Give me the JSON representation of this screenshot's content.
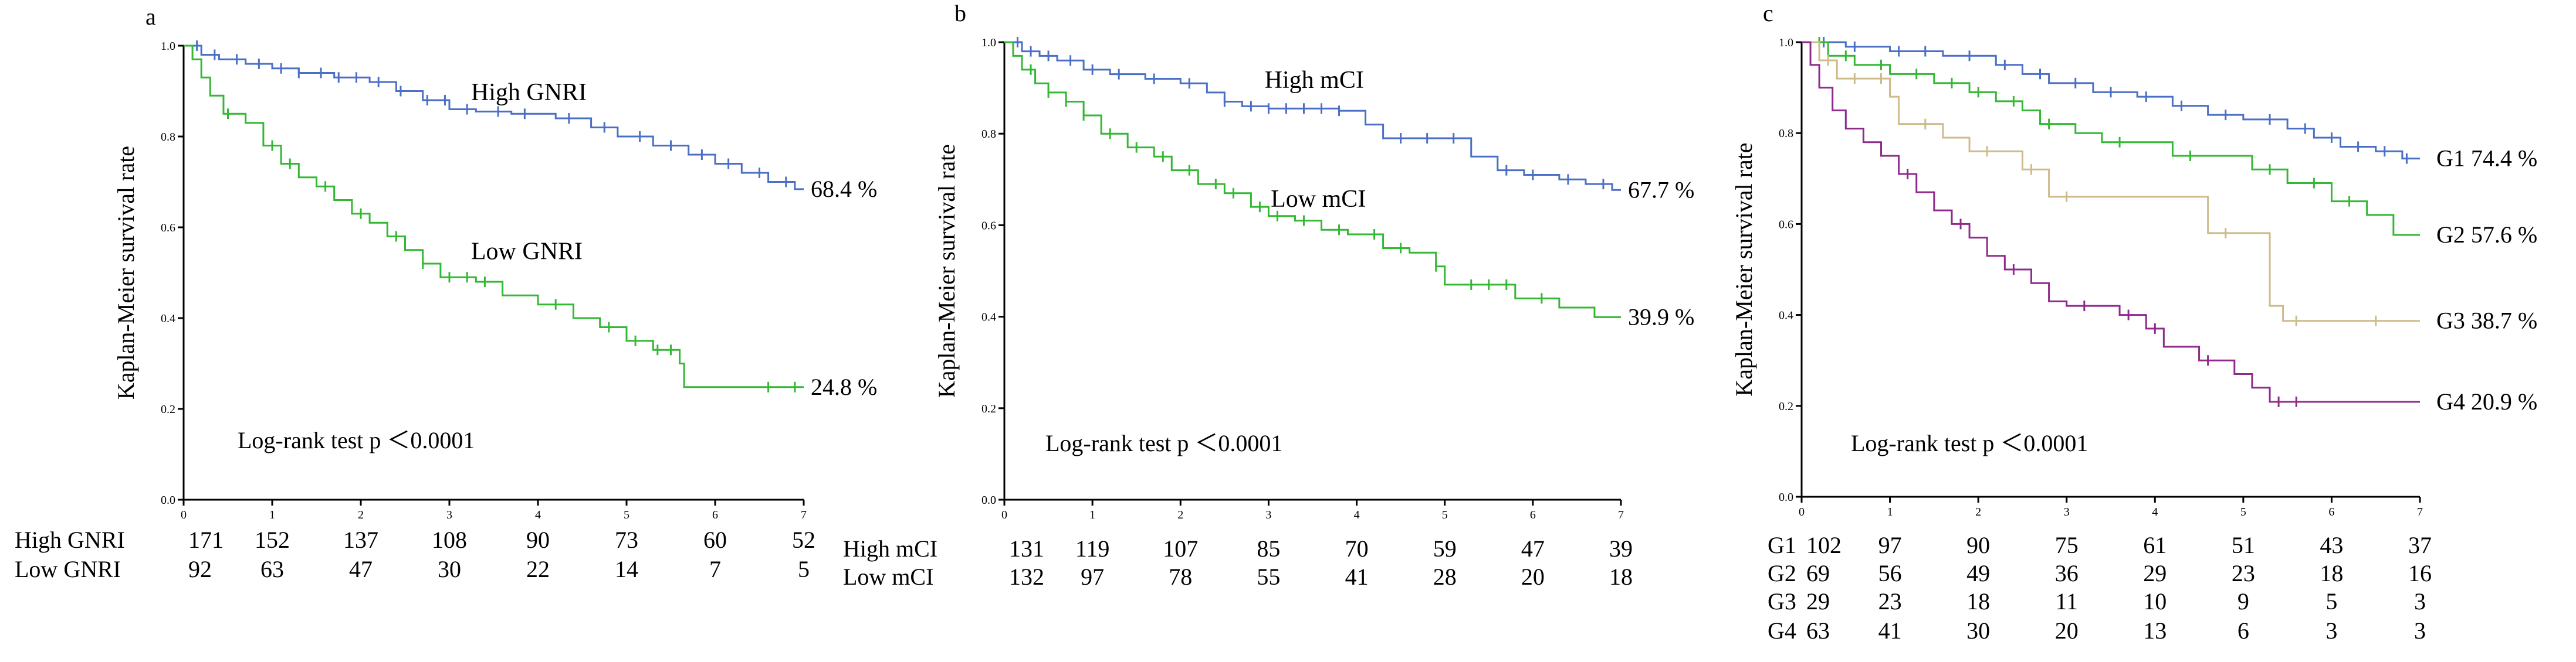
{
  "figure": {
    "x_ticks": [
      "0",
      "1",
      "2",
      "3",
      "4",
      "5",
      "6",
      "7"
    ],
    "y_ticks": [
      "0.0",
      "0.2",
      "0.4",
      "0.6",
      "0.8",
      "1.0"
    ]
  },
  "colors": {
    "blue": "#4A6FC6",
    "green": "#33B833",
    "tan": "#CDBB8A",
    "purple": "#8E2A8C",
    "axis": "#000000"
  },
  "chart_data": [
    {
      "panel": "a",
      "type": "line",
      "step": true,
      "ylabel": "Kaplan-Meier survival rate",
      "xlim": [
        0,
        7
      ],
      "ylim": [
        0,
        1
      ],
      "annotation": "Log-rank test  p ＜0.0001",
      "series": [
        {
          "name": "High GNRI",
          "color_key": "blue",
          "label": "High GNRI",
          "end_label": "68.4 %",
          "points": [
            [
              0,
              1.0
            ],
            [
              0.2,
              0.98
            ],
            [
              0.4,
              0.97
            ],
            [
              0.7,
              0.96
            ],
            [
              1.0,
              0.95
            ],
            [
              1.3,
              0.94
            ],
            [
              1.7,
              0.93
            ],
            [
              2.1,
              0.92
            ],
            [
              2.4,
              0.9
            ],
            [
              2.7,
              0.88
            ],
            [
              3.0,
              0.86
            ],
            [
              3.3,
              0.855
            ],
            [
              3.7,
              0.85
            ],
            [
              4.2,
              0.84
            ],
            [
              4.6,
              0.82
            ],
            [
              4.9,
              0.8
            ],
            [
              5.3,
              0.78
            ],
            [
              5.7,
              0.76
            ],
            [
              6.0,
              0.74
            ],
            [
              6.3,
              0.72
            ],
            [
              6.6,
              0.7
            ],
            [
              6.9,
              0.684
            ],
            [
              7.0,
              0.684
            ]
          ],
          "censors": [
            0.15,
            0.35,
            0.6,
            0.85,
            1.1,
            1.3,
            1.55,
            1.75,
            1.95,
            2.2,
            2.45,
            2.75,
            2.95,
            3.2,
            3.55,
            3.85,
            4.35,
            4.75,
            5.15,
            5.5,
            5.85,
            6.15,
            6.5,
            6.8
          ]
        },
        {
          "name": "Low GNRI",
          "color_key": "green",
          "label": "Low GNRI",
          "end_label": "24.8 %",
          "points": [
            [
              0,
              1.0
            ],
            [
              0.1,
              0.97
            ],
            [
              0.2,
              0.93
            ],
            [
              0.3,
              0.89
            ],
            [
              0.45,
              0.85
            ],
            [
              0.7,
              0.83
            ],
            [
              0.9,
              0.78
            ],
            [
              1.1,
              0.74
            ],
            [
              1.3,
              0.71
            ],
            [
              1.5,
              0.69
            ],
            [
              1.7,
              0.66
            ],
            [
              1.9,
              0.63
            ],
            [
              2.1,
              0.61
            ],
            [
              2.3,
              0.58
            ],
            [
              2.5,
              0.55
            ],
            [
              2.7,
              0.52
            ],
            [
              2.9,
              0.49
            ],
            [
              3.3,
              0.48
            ],
            [
              3.6,
              0.45
            ],
            [
              4.0,
              0.43
            ],
            [
              4.4,
              0.4
            ],
            [
              4.7,
              0.38
            ],
            [
              5.0,
              0.35
            ],
            [
              5.3,
              0.33
            ],
            [
              5.6,
              0.3
            ],
            [
              5.65,
              0.248
            ],
            [
              7.0,
              0.248
            ]
          ],
          "censors": [
            0.5,
            1.0,
            1.2,
            1.6,
            2.0,
            2.4,
            2.7,
            3.0,
            3.2,
            3.4,
            4.2,
            4.8,
            5.1,
            5.35,
            5.5,
            6.6,
            6.9
          ]
        }
      ],
      "risk_table": {
        "rows": [
          {
            "label": "High GNRI",
            "counts": [
              "171",
              "152",
              "137",
              "108",
              "90",
              "73",
              "60",
              "52"
            ]
          },
          {
            "label": "Low  GNRI",
            "counts": [
              "92",
              "63",
              "47",
              "30",
              "22",
              "14",
              "7",
              "5"
            ]
          }
        ]
      }
    },
    {
      "panel": "b",
      "type": "line",
      "step": true,
      "ylabel": "Kaplan-Meier survival rate",
      "xlim": [
        0,
        7
      ],
      "ylim": [
        0,
        1
      ],
      "annotation": "Log-rank test  p ＜0.0001",
      "series": [
        {
          "name": "High mCI",
          "color_key": "blue",
          "label": "High mCI",
          "end_label": "67.7 %",
          "points": [
            [
              0,
              1.0
            ],
            [
              0.2,
              0.98
            ],
            [
              0.4,
              0.97
            ],
            [
              0.6,
              0.96
            ],
            [
              0.9,
              0.94
            ],
            [
              1.2,
              0.93
            ],
            [
              1.6,
              0.92
            ],
            [
              2.0,
              0.91
            ],
            [
              2.3,
              0.89
            ],
            [
              2.5,
              0.87
            ],
            [
              2.7,
              0.86
            ],
            [
              3.0,
              0.855
            ],
            [
              3.4,
              0.855
            ],
            [
              3.8,
              0.85
            ],
            [
              4.1,
              0.82
            ],
            [
              4.3,
              0.79
            ],
            [
              4.6,
              0.79
            ],
            [
              5.0,
              0.79
            ],
            [
              5.3,
              0.75
            ],
            [
              5.6,
              0.72
            ],
            [
              5.9,
              0.71
            ],
            [
              6.3,
              0.7
            ],
            [
              6.6,
              0.69
            ],
            [
              6.9,
              0.677
            ],
            [
              7.0,
              0.677
            ]
          ],
          "censors": [
            0.15,
            0.3,
            0.5,
            0.75,
            1.0,
            1.3,
            1.7,
            2.1,
            2.5,
            2.8,
            3.0,
            3.2,
            3.4,
            3.6,
            3.8,
            4.5,
            4.8,
            5.1,
            5.7,
            6.0,
            6.4,
            6.8
          ]
        },
        {
          "name": "Low mCI",
          "color_key": "green",
          "label": "Low  mCI",
          "end_label": "39.9 %",
          "points": [
            [
              0,
              1.0
            ],
            [
              0.1,
              0.97
            ],
            [
              0.2,
              0.94
            ],
            [
              0.35,
              0.91
            ],
            [
              0.5,
              0.89
            ],
            [
              0.7,
              0.87
            ],
            [
              0.9,
              0.84
            ],
            [
              1.1,
              0.8
            ],
            [
              1.4,
              0.77
            ],
            [
              1.7,
              0.75
            ],
            [
              1.9,
              0.72
            ],
            [
              2.2,
              0.69
            ],
            [
              2.5,
              0.67
            ],
            [
              2.8,
              0.64
            ],
            [
              3.0,
              0.62
            ],
            [
              3.3,
              0.61
            ],
            [
              3.6,
              0.59
            ],
            [
              3.9,
              0.58
            ],
            [
              4.3,
              0.55
            ],
            [
              4.6,
              0.54
            ],
            [
              4.9,
              0.51
            ],
            [
              5.0,
              0.47
            ],
            [
              5.5,
              0.47
            ],
            [
              5.8,
              0.44
            ],
            [
              6.3,
              0.42
            ],
            [
              6.7,
              0.399
            ],
            [
              7.0,
              0.399
            ]
          ],
          "censors": [
            0.3,
            0.5,
            0.7,
            0.9,
            1.2,
            1.5,
            1.8,
            2.1,
            2.4,
            2.6,
            2.9,
            3.1,
            3.4,
            3.8,
            4.2,
            4.5,
            4.9,
            5.3,
            5.5,
            5.7,
            6.1
          ]
        }
      ],
      "risk_table": {
        "rows": [
          {
            "label": "High mCI",
            "counts": [
              "131",
              "119",
              "107",
              "85",
              "70",
              "59",
              "47",
              "39"
            ]
          },
          {
            "label": "Low  mCI",
            "counts": [
              "132",
              "97",
              "78",
              "55",
              "41",
              "28",
              "20",
              "18"
            ]
          }
        ]
      }
    },
    {
      "panel": "c",
      "type": "line",
      "step": true,
      "ylabel": "Kaplan-Meier survival rate",
      "xlim": [
        0,
        7
      ],
      "ylim": [
        0,
        1
      ],
      "annotation": "Log-rank test  p ＜0.0001",
      "series": [
        {
          "name": "G1",
          "color_key": "blue",
          "label": "G1",
          "end_label": "G1  74.4 %",
          "points": [
            [
              0,
              1.0
            ],
            [
              0.5,
              0.99
            ],
            [
              1.0,
              0.98
            ],
            [
              1.6,
              0.97
            ],
            [
              2.2,
              0.95
            ],
            [
              2.5,
              0.93
            ],
            [
              2.8,
              0.91
            ],
            [
              3.3,
              0.89
            ],
            [
              3.8,
              0.88
            ],
            [
              4.2,
              0.86
            ],
            [
              4.6,
              0.84
            ],
            [
              5.0,
              0.83
            ],
            [
              5.5,
              0.81
            ],
            [
              5.8,
              0.79
            ],
            [
              6.1,
              0.77
            ],
            [
              6.5,
              0.76
            ],
            [
              6.8,
              0.744
            ],
            [
              7.0,
              0.744
            ]
          ],
          "censors": [
            0.25,
            0.6,
            1.1,
            1.4,
            1.9,
            2.3,
            2.7,
            3.1,
            3.5,
            3.9,
            4.3,
            4.8,
            5.3,
            5.7,
            6.0,
            6.3,
            6.6,
            6.85
          ]
        },
        {
          "name": "G2",
          "color_key": "green",
          "label": "G2",
          "end_label": "G2  57.6 %",
          "points": [
            [
              0,
              1.0
            ],
            [
              0.3,
              0.97
            ],
            [
              0.6,
              0.95
            ],
            [
              1.0,
              0.93
            ],
            [
              1.5,
              0.91
            ],
            [
              1.9,
              0.89
            ],
            [
              2.2,
              0.87
            ],
            [
              2.5,
              0.85
            ],
            [
              2.7,
              0.82
            ],
            [
              3.1,
              0.8
            ],
            [
              3.4,
              0.78
            ],
            [
              3.8,
              0.78
            ],
            [
              4.2,
              0.75
            ],
            [
              4.8,
              0.75
            ],
            [
              5.1,
              0.72
            ],
            [
              5.5,
              0.69
            ],
            [
              5.9,
              0.69
            ],
            [
              6.0,
              0.65
            ],
            [
              6.4,
              0.62
            ],
            [
              6.7,
              0.576
            ],
            [
              7.0,
              0.576
            ]
          ],
          "censors": [
            0.2,
            0.5,
            0.9,
            1.3,
            1.7,
            2.0,
            2.4,
            2.8,
            3.6,
            4.4,
            5.3,
            5.8,
            6.2
          ]
        },
        {
          "name": "G3",
          "color_key": "tan",
          "label": "G3",
          "end_label": "G3  38.7 %",
          "points": [
            [
              0,
              1.0
            ],
            [
              0.2,
              0.96
            ],
            [
              0.4,
              0.92
            ],
            [
              1.0,
              0.88
            ],
            [
              1.1,
              0.82
            ],
            [
              1.6,
              0.79
            ],
            [
              1.9,
              0.76
            ],
            [
              2.5,
              0.72
            ],
            [
              2.8,
              0.66
            ],
            [
              4.6,
              0.58
            ],
            [
              5.1,
              0.58
            ],
            [
              5.3,
              0.42
            ],
            [
              5.45,
              0.387
            ],
            [
              7.0,
              0.387
            ]
          ],
          "censors": [
            0.3,
            0.6,
            0.9,
            1.4,
            2.1,
            2.6,
            3.0,
            4.8,
            5.6,
            6.5
          ]
        },
        {
          "name": "G4",
          "color_key": "purple",
          "label": "G4",
          "end_label": "G4  20.9 %",
          "points": [
            [
              0,
              1.0
            ],
            [
              0.1,
              0.95
            ],
            [
              0.2,
              0.9
            ],
            [
              0.35,
              0.85
            ],
            [
              0.5,
              0.81
            ],
            [
              0.7,
              0.78
            ],
            [
              0.9,
              0.75
            ],
            [
              1.1,
              0.71
            ],
            [
              1.3,
              0.67
            ],
            [
              1.5,
              0.63
            ],
            [
              1.7,
              0.6
            ],
            [
              1.9,
              0.57
            ],
            [
              2.1,
              0.53
            ],
            [
              2.3,
              0.5
            ],
            [
              2.6,
              0.47
            ],
            [
              2.8,
              0.43
            ],
            [
              3.0,
              0.42
            ],
            [
              3.6,
              0.4
            ],
            [
              3.9,
              0.37
            ],
            [
              4.1,
              0.33
            ],
            [
              4.5,
              0.3
            ],
            [
              4.9,
              0.27
            ],
            [
              5.1,
              0.24
            ],
            [
              5.3,
              0.209
            ],
            [
              7.0,
              0.209
            ]
          ],
          "censors": [
            1.2,
            1.8,
            2.4,
            3.2,
            3.7,
            4.0,
            4.6,
            5.4,
            5.6
          ]
        }
      ],
      "risk_table": {
        "rows": [
          {
            "label": "G1",
            "counts": [
              "102",
              "97",
              "90",
              "75",
              "61",
              "51",
              "43",
              "37"
            ]
          },
          {
            "label": "G2",
            "counts": [
              "69",
              "56",
              "49",
              "36",
              "29",
              "23",
              "18",
              "16"
            ]
          },
          {
            "label": "G3",
            "counts": [
              "29",
              "23",
              "18",
              "11",
              "10",
              "9",
              "5",
              "3"
            ]
          },
          {
            "label": "G4",
            "counts": [
              "63",
              "41",
              "30",
              "20",
              "13",
              "6",
              "3",
              "3"
            ]
          }
        ]
      }
    }
  ]
}
